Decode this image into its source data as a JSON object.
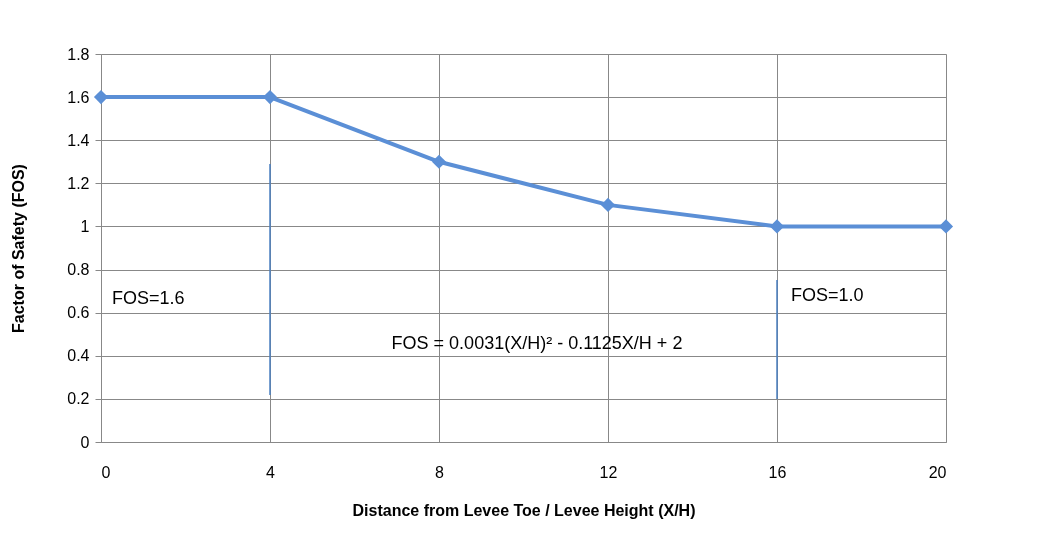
{
  "chart_data": {
    "type": "line",
    "xlabel": "Distance from Levee Toe / Levee Height (X/H)",
    "ylabel": "Factor of Safety (FOS)",
    "x": [
      0,
      4,
      8,
      12,
      16,
      20
    ],
    "series": [
      {
        "color": "#5b8fd6",
        "values": [
          1.6,
          1.6,
          1.3,
          1.1,
          1.0,
          1.0
        ]
      }
    ],
    "xlim": [
      0,
      20
    ],
    "xticks": [
      0,
      4,
      8,
      12,
      16,
      20
    ],
    "ylim": [
      0,
      1.8
    ],
    "yticks": [
      0,
      0.2,
      0.4,
      0.6,
      0.8,
      1,
      1.2,
      1.4,
      1.6,
      1.8
    ],
    "grid": true,
    "marker": "diamond",
    "line_style": "solid",
    "ref_lines": [
      {
        "axis": "x",
        "value": 4,
        "color": "#4a7fc1"
      },
      {
        "axis": "x",
        "value": 16,
        "color": "#4a7fc1"
      }
    ],
    "annotations": [
      "FOS=1.6",
      "FOS = 0.0031(X/H)² - 0.1125X/H + 2",
      "FOS=1.0"
    ]
  }
}
